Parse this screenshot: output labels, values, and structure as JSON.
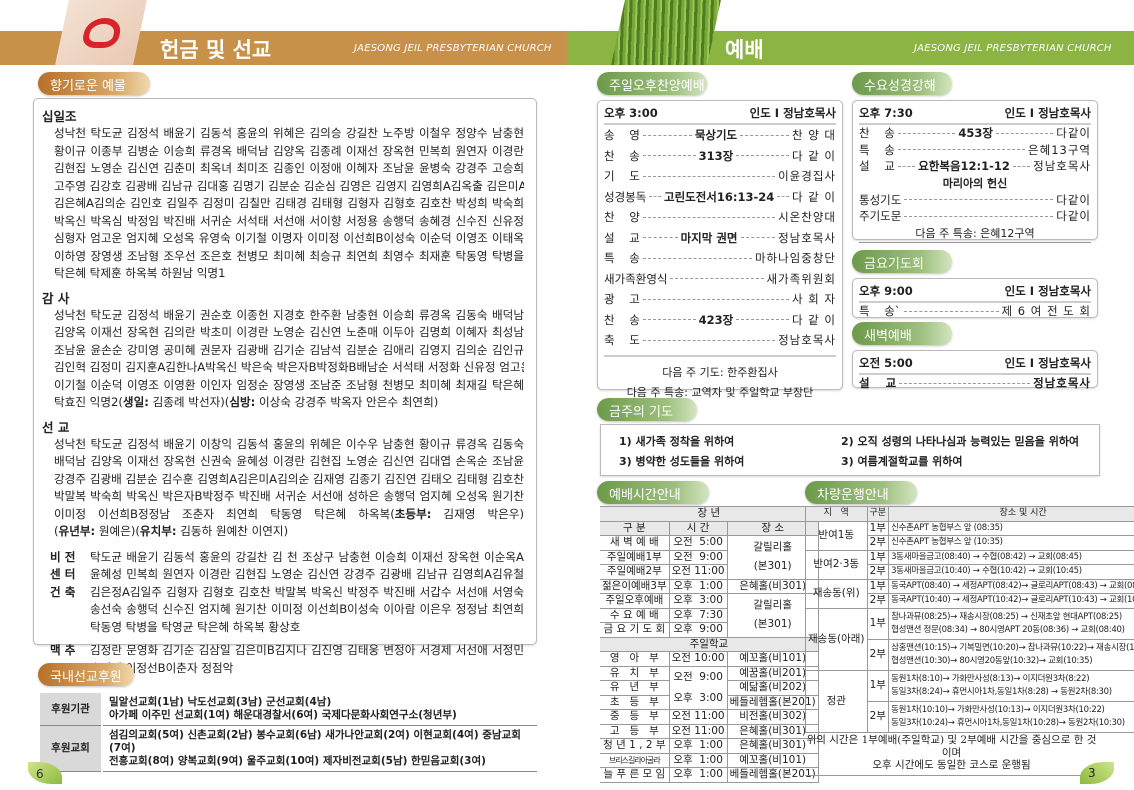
{
  "left_header": {
    "title": "헌금 및 선교",
    "subtitle": "JAESONG JEIL PRESBYTERIAN CHURCH"
  },
  "right_header": {
    "title": "예배",
    "subtitle": "JAESONG JEIL PRESBYTERIAN CHURCH"
  },
  "colors": {
    "orange_band": "#c8914a",
    "green_band": "#8cb443"
  },
  "offering": {
    "title": "향기로운 예물",
    "groups": [
      {
        "heading": "십일조",
        "lines": [
          "성낙천 탁도균 김정석 배윤기 김동석 홍윤의 위혜은 김의승 강길찬 노주방 이철우 정양수 남충현",
          "황이규 이종부 김병순 이승희 류경옥 배덕남 김양옥 김종례 이재선 장옥현 민복희 원연자 이경란",
          "김현집 노영순 김신연 김춘미 최옥녀 최미조 김종인 이정애 이혜자 조남윤 윤병숙 강경주 고승희",
          "고주영 김강호 김광배 김남규 김대홍 김명기 김분순 김순심 김영은 김영지 김영희A김옥출 김은미A",
          "김은혜A김의순 김인호 김일주 김정미 김칠만 김태경 김태형 김형자 김형호 김호찬 박성희 박숙희",
          "박옥신 박옥심 박정임 박진배 서귀순 서석태 서선애 서이향 서정용 송행덕 송혜경 신수진 신유정",
          "심형자 엄고운 엄지혜 오성옥 유영숙 이기철 이명자 이미정 이선희B이성숙 이순덕 이영조 이태옥",
          "이하영 장영생 조남형 조우선 조은호 천병모 최미혜 최승규 최연희 최영수 최재훈 탁동영 탁병을",
          "탁은혜 탁제훈 하옥복 하원남 익명1"
        ]
      },
      {
        "heading": "감 사",
        "lines": [
          "성낙천 탁도균 김정석 배윤기 권순호 이종헌 지경호 한주환 남충현 이승희 류경옥 김동숙 배덕남",
          "김양옥 이재선 장옥현 김의란 박초미 이경란 노영순 김신연 노춘매 이두아 김명희 이혜자 최성남",
          "조남윤 윤손순 강미영 공미혜 권문자 김광배 김기순 김남석 김분순 김애리 김영지 김의순 김인규",
          "김인혁 김정미 김지훈A김한나A박옥신 박은숙 박은자B박정화B배남순 서석태 서정화 신유정 엄고운",
          "이기철 이순덕 이영조 이영환 이인자 임정순 장영생 조남준 조남형 천병모 최미혜 최재길 탁은혜",
          [
            "탁효진 익명2(",
            {
              "b": "생일:"
            },
            " 김종례 박선자)(",
            {
              "b": "심방:"
            },
            " 이상숙 강경주 박옥자 안은수 최연희)"
          ]
        ]
      },
      {
        "heading": "선 교",
        "lines": [
          "성낙천 탁도균 김정석 배윤기 이창익 김동석 홍윤의 위혜은 이수우 남충현 황이규 류경옥 김동숙",
          "배덕남 김양옥 이재선 장옥현 신권숙 윤혜성 이경란 김현집 노영순 김신연 김대엽 손옥순 조남윤",
          "강경주 김광배 김분순 김수훈 김영희A김은미A김의순 김재영 김종기 김진연 김태오 김태형 김호찬",
          "박말복 박숙희 박옥신 박은자B박정주 박진배 서귀순 서선애 성하은 송행덕 엄지혜 오성옥 원기찬",
          [
            "이미정 이선희B정정남 조춘자 최연희 탁동영 탁은혜 하옥복(",
            {
              "b": "초등부:"
            },
            " 김재영 박은우)"
          ],
          [
            "(",
            {
              "b": "유년부:"
            },
            " 원예은)(",
            {
              "b": "유치부:"
            },
            " 김동하 원예찬 이연지)"
          ]
        ]
      }
    ],
    "side_groups": [
      {
        "label": "비 전\n센 터\n건 축",
        "lines": [
          "탁도균 배윤기 김동석 홍윤의 강길찬 김  천 조상구 남충현 이승희 이재선 장옥현 이순옥A",
          "윤혜성 민복희 원연자 이경란 김현집 노영순 김신연 강경주 김광배 김남규 김영희A김유철",
          "김은정A김일주 김형자 김형호 김호찬 박말복 박옥신 박정주 박진배 서갑수 서선애 서영숙",
          "송선숙 송행덕 신수진 엄지혜 원기찬 이미정 이선희B이성숙 이아람 이은우 정정남 최연희",
          "탁동영 탁병을 탁영균 탁은혜 하옥복 황상호"
        ]
      },
      {
        "label": "맥 추",
        "lines": [
          "김정란 문영화 김기순 김삼일 김은미B김지나 김진영 김태웅 변정아 서경제 서선애 서정민",
          "손미영 이정선B이춘자 정점악"
        ]
      }
    ]
  },
  "support": {
    "title": "국내선교후원",
    "rows": [
      {
        "head": "후원기관",
        "lines": [
          "밀알선교회(1남)   낙도선교회(3남) 군선교회(4남)",
          "아가페 이주민 선교회(1여) 해운대경찰서(6여) 국제다문화사회연구소(청년부)"
        ]
      },
      {
        "head": "후원교회",
        "lines": [
          "섬김의교회(5여) 신촌교회(2남) 봉수교회(6남) 새가나안교회(2여) 이현교회(4여) 중남교회(7여)",
          "전흥교회(8여) 양복교회(9여) 울주교회(10여) 제자비전교회(5남) 한믿음교회(3여)"
        ]
      }
    ]
  },
  "page_left": "6",
  "page_right": "3",
  "sunday_pm": {
    "title": "주일오후찬양예배",
    "time": "오후 3:00",
    "leader": "인도 I 정남호목사",
    "rows": [
      {
        "label": "송    영",
        "center": "묵상기도",
        "right": "찬 양 대"
      },
      {
        "label": "찬    송",
        "center": "313장",
        "right": "다 같 이"
      },
      {
        "label": "기    도",
        "center": "",
        "right": "이윤경집사"
      },
      {
        "label": "성경봉독",
        "center": "고린도전서16:13-24",
        "right": "다 같 이"
      },
      {
        "label": "찬    양",
        "center": "",
        "right": "시온찬양대"
      },
      {
        "label": "설    교",
        "center": "마지막 권면",
        "right": "정남호목사"
      },
      {
        "label": "특    송",
        "center": "",
        "right": "마하나임중창단"
      },
      {
        "label": "새가족환영식",
        "center": "",
        "right": "새가족위원회"
      },
      {
        "label": "광    고",
        "center": "",
        "right": "사 회 자"
      },
      {
        "label": "찬    송",
        "center": "423장",
        "right": "다 같 이"
      },
      {
        "label": "축    도",
        "center": "",
        "right": "정남호목사"
      }
    ],
    "next_prayer": "다음 주 기도: 한주환집사",
    "next_special": "다음 주 특송: 교역자 및 주일학교 부장단"
  },
  "wednesday": {
    "title": "수요성경강해",
    "time": "오후 7:30",
    "leader": "인도 I 정남호목사",
    "rows": [
      {
        "label": "찬    송",
        "center": "453장",
        "right": "다같이"
      },
      {
        "label": "특    송",
        "center": "",
        "right": "은혜13구역"
      },
      {
        "label": "설    교",
        "center": "요한복음12:1-12",
        "right": "정남호목사"
      }
    ],
    "sermon_title": "마리아의 헌신",
    "rows2": [
      {
        "label": "통성기도",
        "center": "",
        "right": "다같이"
      },
      {
        "label": "주기도문",
        "center": "",
        "right": "다같이"
      }
    ],
    "next_special": "다음 주 특송: 은혜12구역"
  },
  "friday": {
    "title": "금요기도회",
    "time": "오후 9:00",
    "leader": "인도 I 정남호목사",
    "rows": [
      {
        "label": "특    송`",
        "center": "",
        "right": "제 6 여 전 도 회"
      }
    ]
  },
  "dawn": {
    "title": "새벽예배",
    "time": "오전 5:00",
    "leader": "인도 I 정남호목사",
    "rows": [
      {
        "label": "설    교",
        "center": "",
        "right": "정남호목사"
      }
    ]
  },
  "prayer": {
    "title": "금주의 기도",
    "items": [
      "1) 새가족 정착을 위하여",
      "2) 오직 성령의 나타나심과 능력있는 믿음을 위하여",
      "3) 병약한 성도들을 위하여",
      "3) 여름계절학교를 위하여"
    ]
  },
  "times": {
    "title": "예배시간안내",
    "adult_header": "장 년",
    "columns": [
      "구 분",
      "시 간",
      "장 소"
    ],
    "adult": [
      {
        "name": "새 벽 예 배",
        "time": "오전  5:00"
      },
      {
        "name": "주일예배1부",
        "time": "오전  9:00"
      },
      {
        "name": "주일예배2부",
        "time": "오전 11:00"
      },
      {
        "name": "젊은이예배3부",
        "time": "오후  1:00",
        "place": "은혜홀(비301)"
      },
      {
        "name": "주일오후예배",
        "time": "오후  3:00"
      },
      {
        "name": "수 요 예 배",
        "time": "오후  7:30"
      },
      {
        "name": "금 요 기 도 회",
        "time": "오후  9:00"
      }
    ],
    "adult_place_a": [
      "갈릴리홀",
      "(본301)"
    ],
    "adult_place_b": [
      "갈릴리홀",
      "(본301)"
    ],
    "school_header": "주일학교",
    "school": [
      {
        "name": "영   아   부",
        "time": "오전 10:00",
        "place": "예꼬홀(비101)"
      },
      {
        "name": "유   치   부",
        "place": "예꿈홀(비201)"
      },
      {
        "name": "유   년   부",
        "place": "예닮홀(비202)"
      },
      {
        "name": "초   등   부",
        "place": "베들레헴홀(본201)"
      },
      {
        "name": "중   등   부",
        "time": "오전 11:00",
        "place": "비전홀(비302)"
      },
      {
        "name": "고   등   부",
        "time": "오전 11:00",
        "place": "은혜홀(비301)"
      },
      {
        "name": "청 년 1 , 2 부",
        "time": "오후  1:00",
        "place": "은혜홀(비301)"
      },
      {
        "name": "브리스길라아굴라",
        "time": "오후  1:00",
        "place": "예꼬홀(비101)"
      },
      {
        "name": "늘 푸 른 모 임",
        "time": "오후  1:00",
        "place": "베들레헴홀(본201)"
      }
    ],
    "school_shared_times": [
      "오전  9:00",
      "오후  3:00"
    ]
  },
  "cars": {
    "title": "차량운행안내",
    "columns": [
      "지   역",
      "구분",
      "장소 및 시간"
    ],
    "areas": [
      {
        "area": "반여1동",
        "runs": [
          {
            "part": "1부",
            "route": [
              "신수촌APT 농협부스 앞 (08:35)"
            ]
          },
          {
            "part": "2부",
            "route": [
              "신수촌APT 농협부스 앞 (10:35)"
            ]
          }
        ]
      },
      {
        "area": "반여2·3동",
        "runs": [
          {
            "part": "1부",
            "route": [
              "3동새마을금고(08:40) → 수협(08:42) → 교회(08:45)"
            ]
          },
          {
            "part": "2부",
            "route": [
              "3동새마을금고(10:40) → 수협(10:42) → 교회(10:45)"
            ]
          }
        ]
      },
      {
        "area": "재송동(위)",
        "runs": [
          {
            "part": "1부",
            "route": [
              "동국APT(08:40) → 세정APT(08:42)→ 글로리APT(08:43) → 교회(08:45)"
            ]
          },
          {
            "part": "2부",
            "route": [
              "동국APT(10:40) → 세정APT(10:42)→ 글로리APT(10:43) → 교회(10:45)"
            ]
          }
        ]
      },
      {
        "area": "재송동(아래)",
        "runs": [
          {
            "part": "1부",
            "route": [
              "참나과뮤(08:25)→ 재송시장(08:25) → 신재초앞 현대APT(08:25)",
              "협성맨션 정문(08:34) → 80시영APT 20동(08:36) → 교회(08:40)"
            ]
          },
          {
            "part": "2부",
            "route": [
              "삼홍맨션(10:15)→ 기복밀면(10:20)→ 참나과뮤(10:22)→ 재송시장(10:25)",
              "협성맨션(10:30)→ 80시영20동앞(10:32)→ 교회(10:35)"
            ]
          }
        ]
      },
      {
        "area": "정관",
        "runs": [
          {
            "part": "1부",
            "route": [
              "동원1차(8:10)→ 가화만사성(8:13)→ 이지더원3차(8:22)",
              "동일3차(8:24)→ 휴먼시아1차,동일1차(8:28) → 동원2차(8:30)"
            ]
          },
          {
            "part": "2부",
            "route": [
              "동원1차(10:10)→ 가화만사성(10:13)→ 이지더원3차(10:22)",
              "동일3차(10:24)→ 휴먼시아1차,동일1차(10:28)→ 동원2차(10:30)"
            ]
          }
        ]
      }
    ],
    "note": [
      "위의 시간은 1부예배(주일학교) 및 2부예배 시간을 중심으로 한 것이며",
      "오후 시간에도 동일한 코스로 운행됨"
    ]
  }
}
